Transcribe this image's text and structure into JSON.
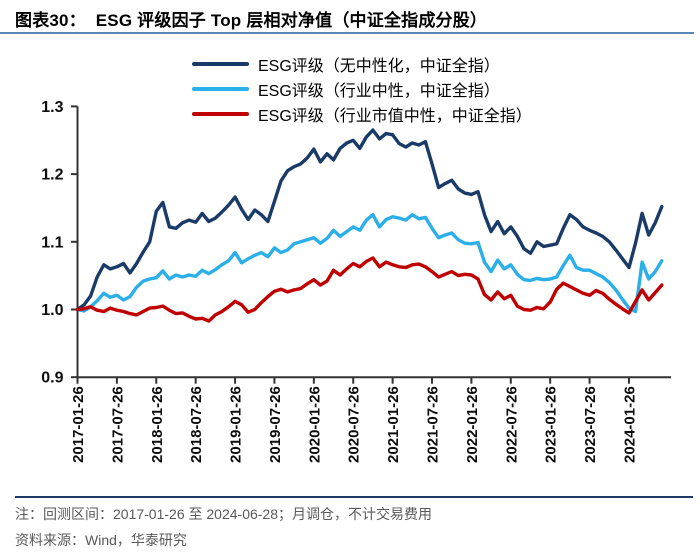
{
  "header": {
    "title": "图表30：  ESG 评级因子 Top 层相对净值（中证全指成分股）"
  },
  "notes": {
    "line1": "注：回测区间：2017-01-26 至 2024-06-28；月调仓，不计交易费用",
    "line2": "资料来源：Wind，华泰研究"
  },
  "colors": {
    "navy_series": "#1a3a68",
    "sky_series": "#2bafe8",
    "red_series": "#c00000",
    "axis": "#333333",
    "title_rule": "#5b87b7",
    "notes_rule": "#1f3864",
    "note_text": "#595959"
  },
  "chart_data": {
    "type": "line",
    "title": "图表30：ESG 评级因子 Top 层相对净值（中证全指成分股）",
    "xlabel": "",
    "ylabel": "",
    "grid": false,
    "legend_position": "top",
    "x_unit": "month",
    "x_start": "2017-01-26",
    "x_end": "2024-06-28",
    "x_tick_every": 6,
    "x_tick_labels": [
      "2017-01-26",
      "2017-07-26",
      "2018-01-26",
      "2018-07-26",
      "2019-01-26",
      "2019-07-26",
      "2020-01-26",
      "2020-07-26",
      "2021-01-26",
      "2021-07-26",
      "2022-01-26",
      "2022-07-26",
      "2023-01-26",
      "2023-07-26",
      "2024-01-26"
    ],
    "y_ticks": [
      0.9,
      1.0,
      1.1,
      1.2,
      1.3
    ],
    "ylim": [
      0.9,
      1.3
    ],
    "series": [
      {
        "name": "ESG评级（无中性化，中证全指）",
        "color": "#1a3a68",
        "values": [
          1.0,
          1.007,
          1.02,
          1.048,
          1.066,
          1.06,
          1.063,
          1.068,
          1.054,
          1.068,
          1.085,
          1.1,
          1.145,
          1.158,
          1.122,
          1.12,
          1.128,
          1.132,
          1.129,
          1.142,
          1.13,
          1.135,
          1.144,
          1.154,
          1.166,
          1.148,
          1.133,
          1.147,
          1.14,
          1.13,
          1.16,
          1.19,
          1.205,
          1.211,
          1.215,
          1.224,
          1.237,
          1.218,
          1.23,
          1.221,
          1.238,
          1.246,
          1.25,
          1.238,
          1.255,
          1.265,
          1.252,
          1.26,
          1.258,
          1.245,
          1.24,
          1.246,
          1.243,
          1.248,
          1.215,
          1.18,
          1.186,
          1.191,
          1.178,
          1.172,
          1.17,
          1.174,
          1.14,
          1.115,
          1.13,
          1.112,
          1.122,
          1.108,
          1.09,
          1.083,
          1.1,
          1.093,
          1.095,
          1.097,
          1.12,
          1.14,
          1.133,
          1.122,
          1.117,
          1.113,
          1.108,
          1.1,
          1.088,
          1.075,
          1.062,
          1.098,
          1.142,
          1.11,
          1.128,
          1.152
        ]
      },
      {
        "name": "ESG评级（行业中性，中证全指）",
        "color": "#2bafe8",
        "values": [
          1.0,
          0.998,
          1.004,
          1.013,
          1.024,
          1.018,
          1.021,
          1.014,
          1.019,
          1.033,
          1.042,
          1.045,
          1.047,
          1.057,
          1.045,
          1.051,
          1.048,
          1.051,
          1.049,
          1.058,
          1.053,
          1.059,
          1.066,
          1.072,
          1.084,
          1.069,
          1.075,
          1.08,
          1.084,
          1.078,
          1.091,
          1.084,
          1.088,
          1.097,
          1.1,
          1.103,
          1.106,
          1.098,
          1.105,
          1.117,
          1.108,
          1.115,
          1.122,
          1.117,
          1.132,
          1.14,
          1.122,
          1.133,
          1.137,
          1.135,
          1.132,
          1.14,
          1.134,
          1.136,
          1.12,
          1.106,
          1.11,
          1.113,
          1.103,
          1.098,
          1.097,
          1.099,
          1.07,
          1.056,
          1.073,
          1.06,
          1.066,
          1.052,
          1.044,
          1.043,
          1.046,
          1.044,
          1.045,
          1.048,
          1.065,
          1.08,
          1.062,
          1.058,
          1.058,
          1.053,
          1.048,
          1.04,
          1.029,
          1.015,
          1.002,
          0.997,
          1.07,
          1.045,
          1.056,
          1.072
        ]
      },
      {
        "name": "ESG评级（行业市值中性，中证全指）",
        "color": "#c00000",
        "values": [
          1.0,
          1.001,
          1.004,
          0.999,
          0.997,
          1.002,
          0.999,
          0.997,
          0.994,
          0.992,
          0.997,
          1.002,
          1.003,
          1.005,
          0.999,
          0.994,
          0.995,
          0.99,
          0.986,
          0.987,
          0.983,
          0.992,
          0.997,
          1.004,
          1.012,
          1.007,
          0.996,
          1.0,
          1.01,
          1.019,
          1.027,
          1.03,
          1.026,
          1.029,
          1.031,
          1.038,
          1.044,
          1.036,
          1.042,
          1.058,
          1.051,
          1.06,
          1.068,
          1.063,
          1.071,
          1.076,
          1.063,
          1.07,
          1.066,
          1.063,
          1.062,
          1.066,
          1.067,
          1.063,
          1.056,
          1.048,
          1.052,
          1.056,
          1.05,
          1.052,
          1.051,
          1.045,
          1.022,
          1.014,
          1.026,
          1.016,
          1.021,
          1.005,
          1.0,
          0.999,
          1.003,
          1.001,
          1.011,
          1.03,
          1.039,
          1.034,
          1.029,
          1.024,
          1.021,
          1.028,
          1.024,
          1.015,
          1.008,
          1.001,
          0.995,
          1.012,
          1.029,
          1.014,
          1.025,
          1.036
        ]
      }
    ]
  }
}
